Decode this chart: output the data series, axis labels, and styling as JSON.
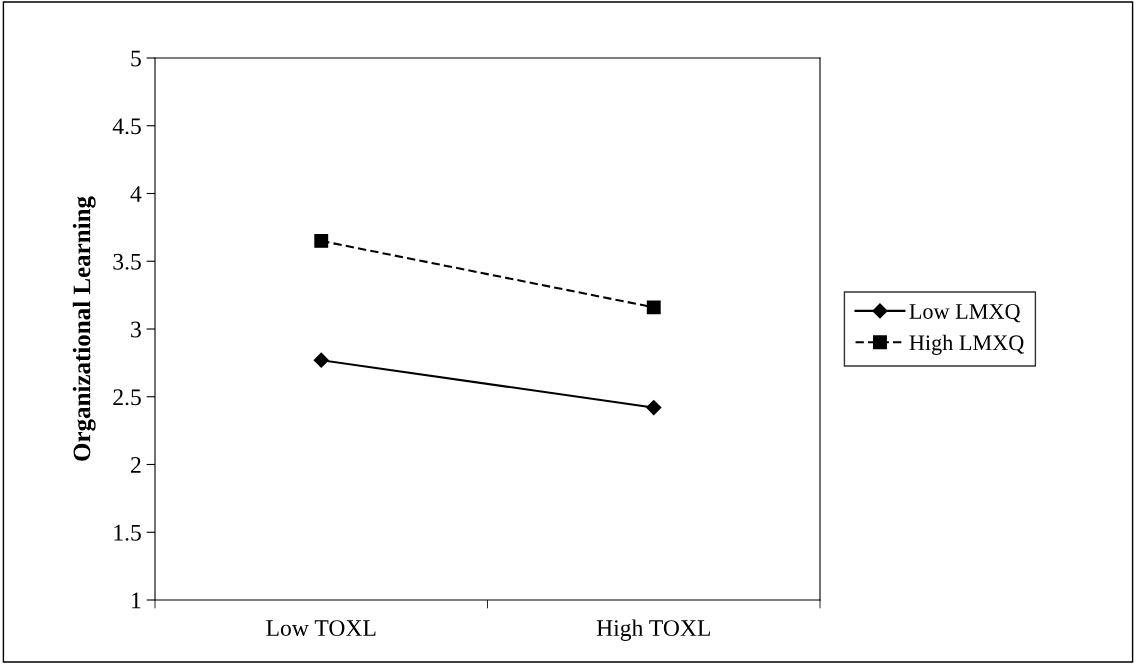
{
  "chart_data": {
    "type": "line",
    "ylabel": "Organizational Learning",
    "categories": [
      "Low TOXL",
      "High TOXL"
    ],
    "series": [
      {
        "name": "Low LMXQ",
        "color": "#000000",
        "values": [
          2.77,
          2.42
        ],
        "marker": "diamond",
        "line_style": "solid"
      },
      {
        "name": "High LMXQ",
        "color": "#000000",
        "values": [
          3.65,
          3.16
        ],
        "marker": "square",
        "line_style": "dashed"
      }
    ],
    "ylim": [
      1,
      5
    ],
    "yticks": [
      1,
      1.5,
      2,
      2.5,
      3,
      3.5,
      4,
      4.5,
      5
    ],
    "grid": false,
    "legend": "right"
  }
}
